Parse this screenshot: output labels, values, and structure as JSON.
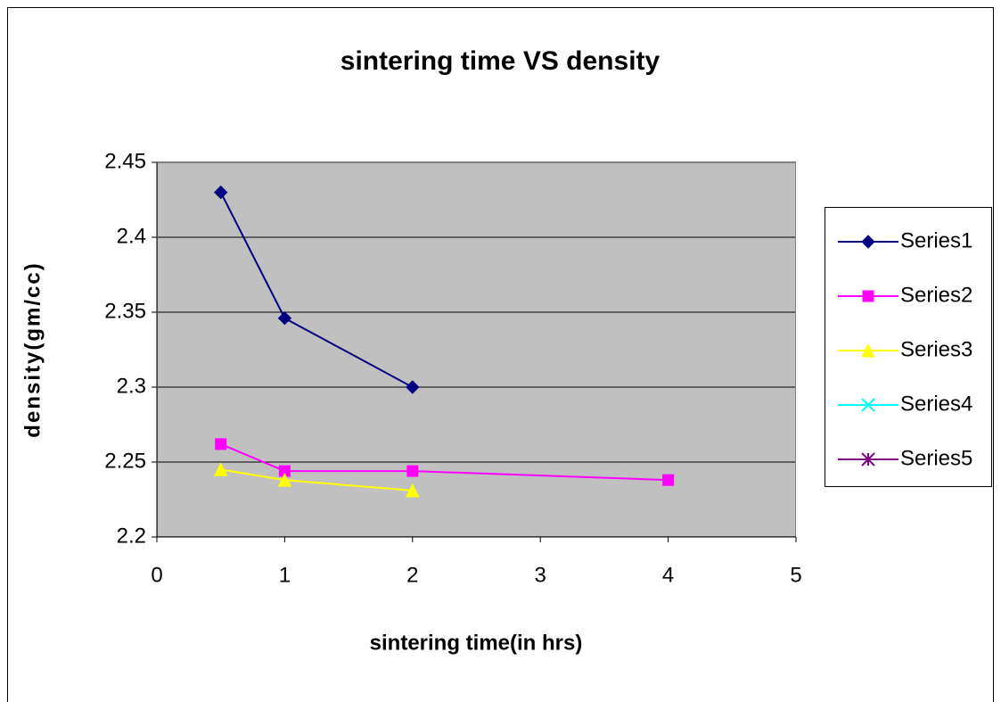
{
  "chart_data": {
    "type": "line",
    "title": "sintering time VS density",
    "x_label": "sintering time(in hrs)",
    "y_label": "density(gm/cc)",
    "xlim": [
      0,
      5
    ],
    "xticks": [
      0,
      1,
      2,
      3,
      4,
      5
    ],
    "ylim": [
      2.2,
      2.45
    ],
    "yticks": [
      2.2,
      2.25,
      2.3,
      2.35,
      2.4,
      2.45
    ],
    "grid": true,
    "legend": "right",
    "plot_background": "#c0c0c0",
    "series": [
      {
        "name": "Series1",
        "color": "#000080",
        "marker": "diamond",
        "x": [
          0.5,
          1,
          2
        ],
        "values": [
          2.43,
          2.346,
          2.3
        ]
      },
      {
        "name": "Series2",
        "color": "#ff00ff",
        "marker": "square",
        "x": [
          0.5,
          1,
          2,
          4
        ],
        "values": [
          2.262,
          2.244,
          2.244,
          2.238
        ]
      },
      {
        "name": "Series3",
        "color": "#ffff00",
        "marker": "triangle",
        "x": [
          0.5,
          1,
          2
        ],
        "values": [
          2.245,
          2.238,
          2.231
        ]
      },
      {
        "name": "Series4",
        "color": "#00ffff",
        "marker": "x",
        "x": [],
        "values": []
      },
      {
        "name": "Series5",
        "color": "#800080",
        "marker": "star",
        "x": [],
        "values": []
      }
    ]
  }
}
